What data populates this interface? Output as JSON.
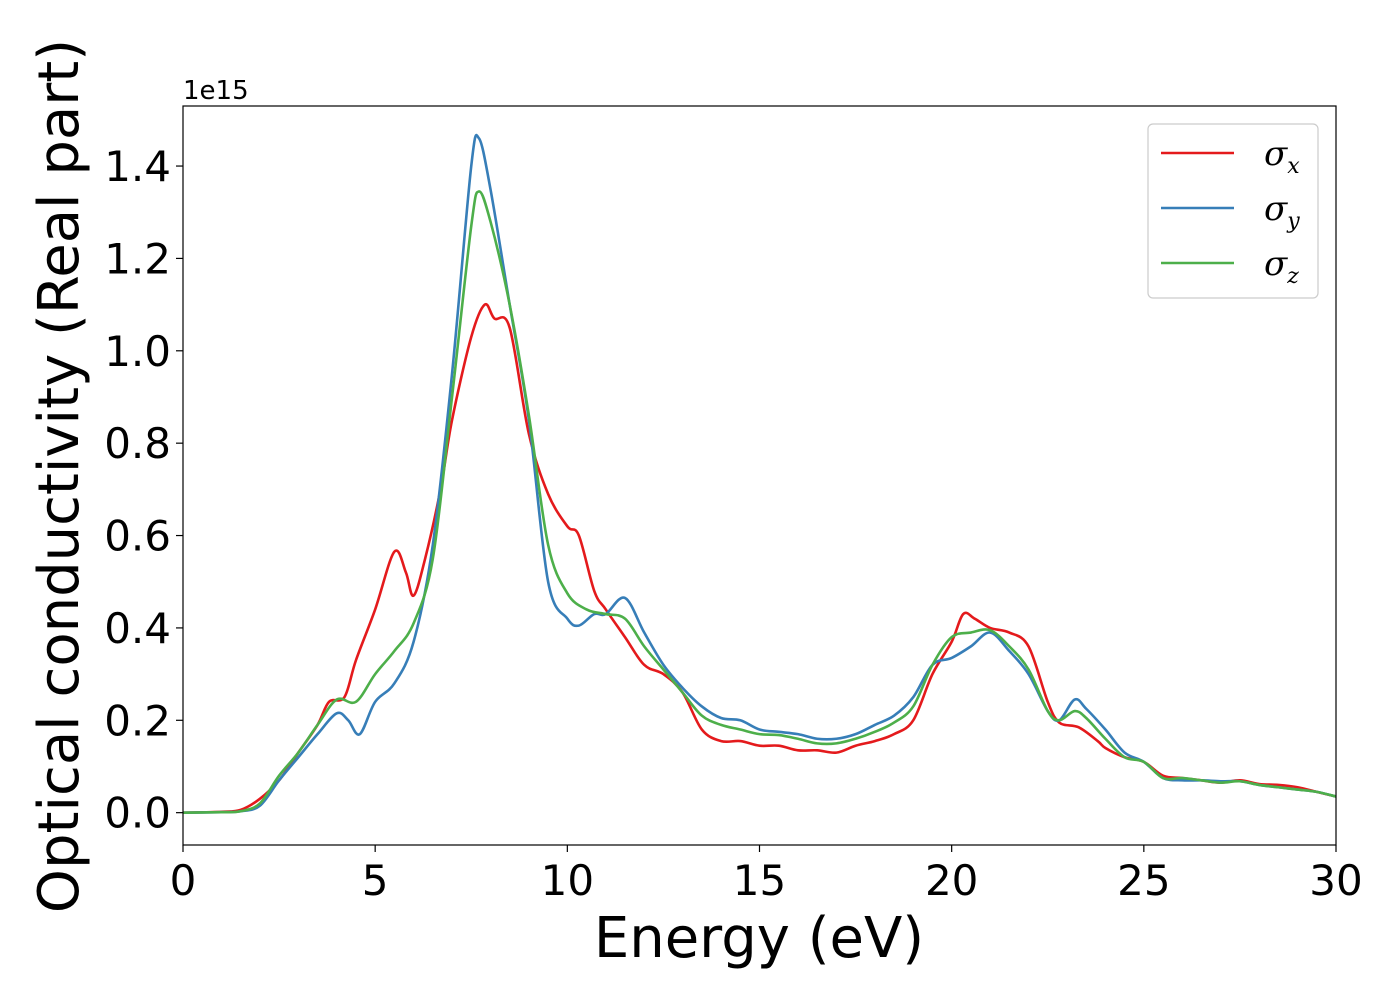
{
  "chart_data": {
    "type": "line",
    "xlabel": "Energy (eV)",
    "ylabel": "Optical conductivity (Real part)",
    "y_offset_label": "1e15",
    "xlim": [
      0,
      30
    ],
    "ylim": [
      -0.07,
      1.53
    ],
    "y_scale_factor": 1000000000000000.0,
    "x_ticks": [
      0,
      5,
      10,
      15,
      20,
      25,
      30
    ],
    "x_tick_labels": [
      "0",
      "5",
      "10",
      "15",
      "20",
      "25",
      "30"
    ],
    "y_ticks": [
      0.0,
      0.2,
      0.4,
      0.6,
      0.8,
      1.0,
      1.2,
      1.4
    ],
    "y_tick_labels": [
      "0.0",
      "0.2",
      "0.4",
      "0.6",
      "0.8",
      "1.0",
      "1.2",
      "1.4"
    ],
    "grid": false,
    "legend_position": "top-right",
    "series": [
      {
        "name": "σx",
        "symbol": "σ",
        "subscript": "x",
        "color": "#e41a1c",
        "points": [
          [
            0,
            0
          ],
          [
            1,
            0.002
          ],
          [
            1.5,
            0.006
          ],
          [
            2,
            0.03
          ],
          [
            2.5,
            0.07
          ],
          [
            3,
            0.13
          ],
          [
            3.5,
            0.19
          ],
          [
            3.8,
            0.24
          ],
          [
            4.2,
            0.25
          ],
          [
            4.5,
            0.33
          ],
          [
            5,
            0.44
          ],
          [
            5.5,
            0.565
          ],
          [
            5.8,
            0.52
          ],
          [
            6,
            0.47
          ],
          [
            6.3,
            0.55
          ],
          [
            6.7,
            0.7
          ],
          [
            7,
            0.85
          ],
          [
            7.5,
            1.03
          ],
          [
            7.85,
            1.1
          ],
          [
            8.1,
            1.07
          ],
          [
            8.5,
            1.05
          ],
          [
            9,
            0.82
          ],
          [
            9.5,
            0.69
          ],
          [
            10,
            0.62
          ],
          [
            10.3,
            0.6
          ],
          [
            10.7,
            0.48
          ],
          [
            11,
            0.44
          ],
          [
            11.5,
            0.38
          ],
          [
            12,
            0.32
          ],
          [
            12.5,
            0.3
          ],
          [
            13,
            0.26
          ],
          [
            13.5,
            0.18
          ],
          [
            14,
            0.155
          ],
          [
            14.5,
            0.155
          ],
          [
            15,
            0.145
          ],
          [
            15.5,
            0.145
          ],
          [
            16,
            0.135
          ],
          [
            16.5,
            0.135
          ],
          [
            17,
            0.13
          ],
          [
            17.5,
            0.145
          ],
          [
            18,
            0.155
          ],
          [
            18.5,
            0.17
          ],
          [
            19,
            0.2
          ],
          [
            19.5,
            0.3
          ],
          [
            20,
            0.37
          ],
          [
            20.3,
            0.43
          ],
          [
            20.6,
            0.42
          ],
          [
            21,
            0.4
          ],
          [
            21.5,
            0.39
          ],
          [
            22,
            0.36
          ],
          [
            22.5,
            0.24
          ],
          [
            22.8,
            0.195
          ],
          [
            23.3,
            0.185
          ],
          [
            23.8,
            0.155
          ],
          [
            24,
            0.14
          ],
          [
            24.5,
            0.12
          ],
          [
            25,
            0.11
          ],
          [
            25.5,
            0.08
          ],
          [
            26,
            0.075
          ],
          [
            26.5,
            0.07
          ],
          [
            27,
            0.065
          ],
          [
            27.5,
            0.07
          ],
          [
            28,
            0.062
          ],
          [
            28.5,
            0.06
          ],
          [
            29,
            0.055
          ],
          [
            29.5,
            0.045
          ],
          [
            30,
            0.035
          ]
        ]
      },
      {
        "name": "σy",
        "symbol": "σ",
        "subscript": "y",
        "color": "#377eb8",
        "points": [
          [
            0,
            0
          ],
          [
            1,
            0.001
          ],
          [
            1.5,
            0.003
          ],
          [
            2,
            0.015
          ],
          [
            2.5,
            0.07
          ],
          [
            3,
            0.12
          ],
          [
            3.5,
            0.17
          ],
          [
            4,
            0.215
          ],
          [
            4.3,
            0.2
          ],
          [
            4.6,
            0.17
          ],
          [
            5,
            0.24
          ],
          [
            5.5,
            0.28
          ],
          [
            6,
            0.37
          ],
          [
            6.5,
            0.58
          ],
          [
            7,
            0.95
          ],
          [
            7.5,
            1.4
          ],
          [
            7.7,
            1.46
          ],
          [
            8,
            1.35
          ],
          [
            8.5,
            1.1
          ],
          [
            9,
            0.85
          ],
          [
            9.5,
            0.5
          ],
          [
            10,
            0.42
          ],
          [
            10.3,
            0.405
          ],
          [
            10.7,
            0.43
          ],
          [
            11,
            0.43
          ],
          [
            11.5,
            0.465
          ],
          [
            12,
            0.39
          ],
          [
            12.5,
            0.32
          ],
          [
            13,
            0.27
          ],
          [
            13.5,
            0.23
          ],
          [
            14,
            0.205
          ],
          [
            14.5,
            0.2
          ],
          [
            15,
            0.18
          ],
          [
            15.5,
            0.175
          ],
          [
            16,
            0.17
          ],
          [
            16.5,
            0.16
          ],
          [
            17,
            0.16
          ],
          [
            17.5,
            0.17
          ],
          [
            18,
            0.19
          ],
          [
            18.5,
            0.21
          ],
          [
            19,
            0.25
          ],
          [
            19.5,
            0.32
          ],
          [
            20,
            0.335
          ],
          [
            20.5,
            0.36
          ],
          [
            21,
            0.39
          ],
          [
            21.5,
            0.35
          ],
          [
            22,
            0.3
          ],
          [
            22.5,
            0.22
          ],
          [
            22.8,
            0.2
          ],
          [
            23.2,
            0.245
          ],
          [
            23.5,
            0.225
          ],
          [
            24,
            0.18
          ],
          [
            24.5,
            0.13
          ],
          [
            25,
            0.11
          ],
          [
            25.5,
            0.075
          ],
          [
            26,
            0.07
          ],
          [
            26.5,
            0.07
          ],
          [
            27,
            0.068
          ],
          [
            27.5,
            0.068
          ],
          [
            28,
            0.06
          ],
          [
            28.5,
            0.055
          ],
          [
            29,
            0.05
          ],
          [
            29.5,
            0.045
          ],
          [
            30,
            0.035
          ]
        ]
      },
      {
        "name": "σz",
        "symbol": "σ",
        "subscript": "z",
        "color": "#4daf4a",
        "points": [
          [
            0,
            0
          ],
          [
            1,
            0.001
          ],
          [
            1.5,
            0.003
          ],
          [
            2,
            0.02
          ],
          [
            2.5,
            0.08
          ],
          [
            3,
            0.13
          ],
          [
            3.5,
            0.19
          ],
          [
            4,
            0.245
          ],
          [
            4.5,
            0.24
          ],
          [
            5,
            0.3
          ],
          [
            5.5,
            0.35
          ],
          [
            6,
            0.41
          ],
          [
            6.5,
            0.55
          ],
          [
            7,
            0.9
          ],
          [
            7.5,
            1.27
          ],
          [
            7.7,
            1.345
          ],
          [
            8,
            1.28
          ],
          [
            8.5,
            1.1
          ],
          [
            9,
            0.86
          ],
          [
            9.5,
            0.58
          ],
          [
            10,
            0.475
          ],
          [
            10.5,
            0.44
          ],
          [
            11,
            0.43
          ],
          [
            11.5,
            0.42
          ],
          [
            12,
            0.36
          ],
          [
            12.5,
            0.31
          ],
          [
            13,
            0.26
          ],
          [
            13.5,
            0.21
          ],
          [
            14,
            0.19
          ],
          [
            14.5,
            0.18
          ],
          [
            15,
            0.17
          ],
          [
            15.5,
            0.168
          ],
          [
            16,
            0.16
          ],
          [
            16.5,
            0.15
          ],
          [
            17,
            0.15
          ],
          [
            17.5,
            0.16
          ],
          [
            18,
            0.175
          ],
          [
            18.5,
            0.195
          ],
          [
            19,
            0.23
          ],
          [
            19.5,
            0.32
          ],
          [
            20,
            0.38
          ],
          [
            20.5,
            0.39
          ],
          [
            21,
            0.395
          ],
          [
            21.5,
            0.36
          ],
          [
            22,
            0.31
          ],
          [
            22.5,
            0.22
          ],
          [
            22.8,
            0.2
          ],
          [
            23.2,
            0.22
          ],
          [
            23.5,
            0.205
          ],
          [
            24,
            0.16
          ],
          [
            24.5,
            0.12
          ],
          [
            25,
            0.11
          ],
          [
            25.5,
            0.075
          ],
          [
            26,
            0.075
          ],
          [
            26.5,
            0.07
          ],
          [
            27,
            0.065
          ],
          [
            27.5,
            0.068
          ],
          [
            28,
            0.06
          ],
          [
            28.5,
            0.055
          ],
          [
            29,
            0.05
          ],
          [
            29.5,
            0.045
          ],
          [
            30,
            0.035
          ]
        ]
      }
    ]
  }
}
